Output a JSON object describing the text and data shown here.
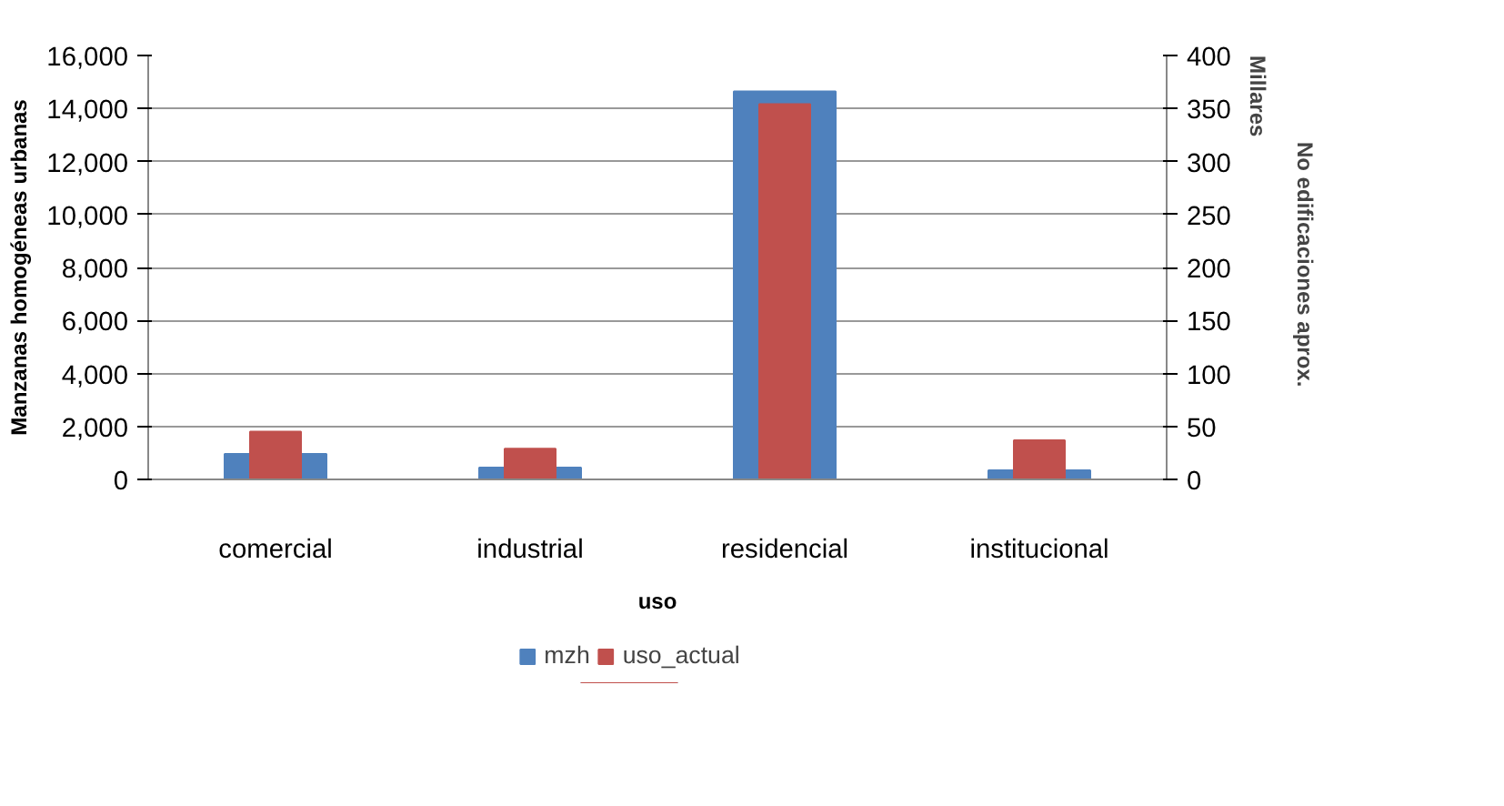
{
  "chart_data": {
    "type": "bar",
    "xlabel": "uso",
    "ylabel": "Manzanas homogéneas urbanas",
    "y2label": "No edificaciones  aprox.",
    "annotations": [
      "Millares"
    ],
    "categories": [
      "comercial",
      "industrial",
      "residencial",
      "institucional"
    ],
    "series": [
      {
        "name": "mzh",
        "color": "#4f81bd",
        "values": [
          960,
          450,
          14640,
          340
        ]
      },
      {
        "name": "uso_actual",
        "color": "#c0504d",
        "values": [
          45,
          29,
          354,
          37
        ],
        "axis": "y2"
      }
    ],
    "ylim": [
      0,
      16000
    ],
    "yticks": [
      {
        "value": 0,
        "label": "0"
      },
      {
        "value": 2000,
        "label": "2,000"
      },
      {
        "value": 4000,
        "label": "4,000"
      },
      {
        "value": 6000,
        "label": "6,000"
      },
      {
        "value": 8000,
        "label": "8,000"
      },
      {
        "value": 10000,
        "label": "10,000"
      },
      {
        "value": 12000,
        "label": "12,000"
      },
      {
        "value": 14000,
        "label": "14,000"
      },
      {
        "value": 16000,
        "label": "16,000"
      }
    ],
    "y2lim": [
      0,
      400
    ],
    "y2ticks": [
      0,
      50,
      100,
      150,
      200,
      250,
      300,
      350,
      400
    ],
    "grid": "y",
    "legend": "bottom"
  }
}
